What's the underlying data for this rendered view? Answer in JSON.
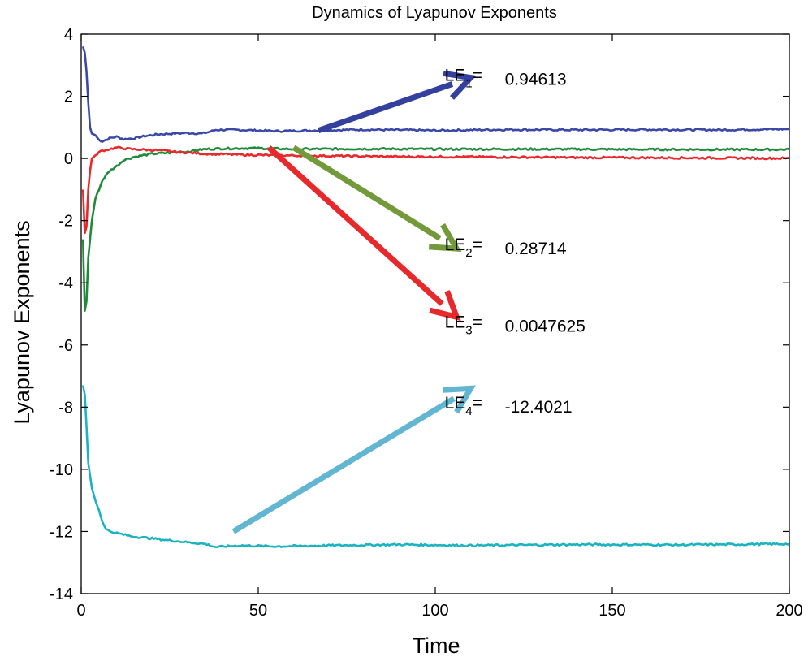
{
  "chart_data": {
    "type": "line",
    "title": "Dynamics of Lyapunov Exponents",
    "xlabel": "Time",
    "ylabel": "Lyapunov Exponents",
    "xlim": [
      0,
      200
    ],
    "ylim": [
      -14,
      4
    ],
    "xticks": [
      0,
      50,
      100,
      150,
      200
    ],
    "yticks": [
      4,
      2,
      0,
      -2,
      -4,
      -6,
      -8,
      -10,
      -12,
      -14
    ],
    "grid": false,
    "legend": "none",
    "series": [
      {
        "color": "#3a48a8",
        "points": [
          [
            0.5,
            3.6
          ],
          [
            1,
            3.4
          ],
          [
            1.5,
            2.8
          ],
          [
            2,
            1.8
          ],
          [
            2.5,
            1.0
          ],
          [
            3,
            0.8
          ],
          [
            4,
            0.75
          ],
          [
            5,
            0.6
          ],
          [
            6,
            0.55
          ],
          [
            8,
            0.65
          ],
          [
            10,
            0.7
          ],
          [
            12,
            0.62
          ],
          [
            15,
            0.65
          ],
          [
            18,
            0.72
          ],
          [
            22,
            0.78
          ],
          [
            26,
            0.8
          ],
          [
            30,
            0.82
          ],
          [
            34,
            0.8
          ],
          [
            36,
            0.85
          ],
          [
            38,
            0.92
          ],
          [
            45,
            0.92
          ],
          [
            55,
            0.88
          ],
          [
            65,
            0.9
          ],
          [
            80,
            0.93
          ],
          [
            100,
            0.9
          ],
          [
            120,
            0.93
          ],
          [
            140,
            0.92
          ],
          [
            160,
            0.93
          ],
          [
            180,
            0.92
          ],
          [
            200,
            0.946
          ]
        ]
      },
      {
        "color": "#1e8a3a",
        "points": [
          [
            0.5,
            -2.6
          ],
          [
            1,
            -4.9
          ],
          [
            1.5,
            -4.6
          ],
          [
            2,
            -3.2
          ],
          [
            3,
            -2.0
          ],
          [
            4,
            -1.3
          ],
          [
            5,
            -1.0
          ],
          [
            6,
            -0.7
          ],
          [
            8,
            -0.4
          ],
          [
            10,
            -0.25
          ],
          [
            12,
            -0.05
          ],
          [
            15,
            0.05
          ],
          [
            20,
            0.15
          ],
          [
            25,
            0.18
          ],
          [
            30,
            0.22
          ],
          [
            35,
            0.3
          ],
          [
            40,
            0.32
          ],
          [
            50,
            0.33
          ],
          [
            60,
            0.3
          ],
          [
            80,
            0.31
          ],
          [
            100,
            0.3
          ],
          [
            130,
            0.3
          ],
          [
            160,
            0.29
          ],
          [
            200,
            0.287
          ]
        ]
      },
      {
        "color": "#e8292b",
        "points": [
          [
            0.5,
            -1.0
          ],
          [
            1,
            -2.4
          ],
          [
            1.5,
            -2.2
          ],
          [
            2,
            -1.0
          ],
          [
            2.5,
            -0.4
          ],
          [
            3,
            0.0
          ],
          [
            4,
            0.1
          ],
          [
            5,
            0.2
          ],
          [
            6,
            0.25
          ],
          [
            8,
            0.3
          ],
          [
            10,
            0.35
          ],
          [
            14,
            0.3
          ],
          [
            18,
            0.28
          ],
          [
            22,
            0.26
          ],
          [
            28,
            0.2
          ],
          [
            35,
            0.15
          ],
          [
            45,
            0.12
          ],
          [
            55,
            0.1
          ],
          [
            70,
            0.08
          ],
          [
            90,
            0.06
          ],
          [
            110,
            0.05
          ],
          [
            140,
            0.03
          ],
          [
            170,
            0.02
          ],
          [
            200,
            0.005
          ]
        ]
      },
      {
        "color": "#1ab3bf",
        "points": [
          [
            0.5,
            -7.3
          ],
          [
            1,
            -7.6
          ],
          [
            1.5,
            -8.6
          ],
          [
            2,
            -9.8
          ],
          [
            3,
            -10.6
          ],
          [
            4,
            -11.0
          ],
          [
            5,
            -11.3
          ],
          [
            6,
            -11.7
          ],
          [
            7,
            -11.9
          ],
          [
            8,
            -12.0
          ],
          [
            10,
            -12.05
          ],
          [
            14,
            -12.15
          ],
          [
            18,
            -12.2
          ],
          [
            22,
            -12.25
          ],
          [
            26,
            -12.3
          ],
          [
            30,
            -12.35
          ],
          [
            35,
            -12.4
          ],
          [
            38,
            -12.5
          ],
          [
            45,
            -12.45
          ],
          [
            55,
            -12.48
          ],
          [
            70,
            -12.45
          ],
          [
            90,
            -12.42
          ],
          [
            110,
            -12.45
          ],
          [
            140,
            -12.42
          ],
          [
            170,
            -12.43
          ],
          [
            200,
            -12.4
          ]
        ]
      }
    ],
    "annotations": [
      {
        "label": "LE",
        "sub": "1",
        "eq": "=",
        "value": "0.94613",
        "color": "#34409e",
        "from": [
          67,
          0.9
        ],
        "to": [
          110,
          2.6
        ],
        "text_at": [
          110,
          2.5
        ]
      },
      {
        "label": "LE",
        "sub": "2",
        "eq": "=",
        "value": "0.28714",
        "color": "#739a3a",
        "from": [
          60,
          0.35
        ],
        "to": [
          106,
          -2.9
        ],
        "text_at": [
          110,
          -2.95
        ]
      },
      {
        "label": "LE",
        "sub": "3",
        "eq": "=",
        "value": "0.0047625",
        "color": "#e8292b",
        "from": [
          53,
          0.35
        ],
        "to": [
          106,
          -5.1
        ],
        "text_at": [
          110,
          -5.45
        ]
      },
      {
        "label": "LE",
        "sub": "4",
        "eq": "=",
        "value": "-12.4021",
        "color": "#63b6d2",
        "from": [
          43,
          -12.0
        ],
        "to": [
          110,
          -7.4
        ],
        "text_at": [
          110,
          -8.05
        ]
      }
    ]
  }
}
